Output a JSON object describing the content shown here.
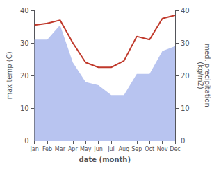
{
  "chart_data": {
    "type": "line",
    "categories": [
      "Jan",
      "Feb",
      "Mar",
      "Apr",
      "May",
      "Jun",
      "Jul",
      "Aug",
      "Sep",
      "Oct",
      "Nov",
      "Dec"
    ],
    "xlabel": "date (month)",
    "ylabel": "max temp (C)",
    "y2label": "med. precipitation\n(kg/m2)",
    "ylim": [
      0,
      40
    ],
    "yticks": [
      0,
      10,
      20,
      30,
      40
    ],
    "y2lim": [
      0,
      40
    ],
    "y2ticks": [
      0,
      10,
      20,
      30,
      40
    ],
    "grid": false,
    "series": [
      {
        "type": "area",
        "color": "#b8c4f0",
        "values": [
          31.0,
          31.0,
          35.5,
          24.0,
          18.0,
          17.0,
          14.0,
          14.0,
          20.5,
          20.5,
          27.5,
          29.0
        ]
      },
      {
        "type": "line",
        "color": "#c0392b",
        "axis": "y2",
        "values": [
          35.5,
          36.0,
          37.0,
          30.0,
          24.0,
          22.5,
          22.5,
          24.5,
          32.0,
          31.0,
          37.5,
          38.5
        ]
      }
    ]
  }
}
